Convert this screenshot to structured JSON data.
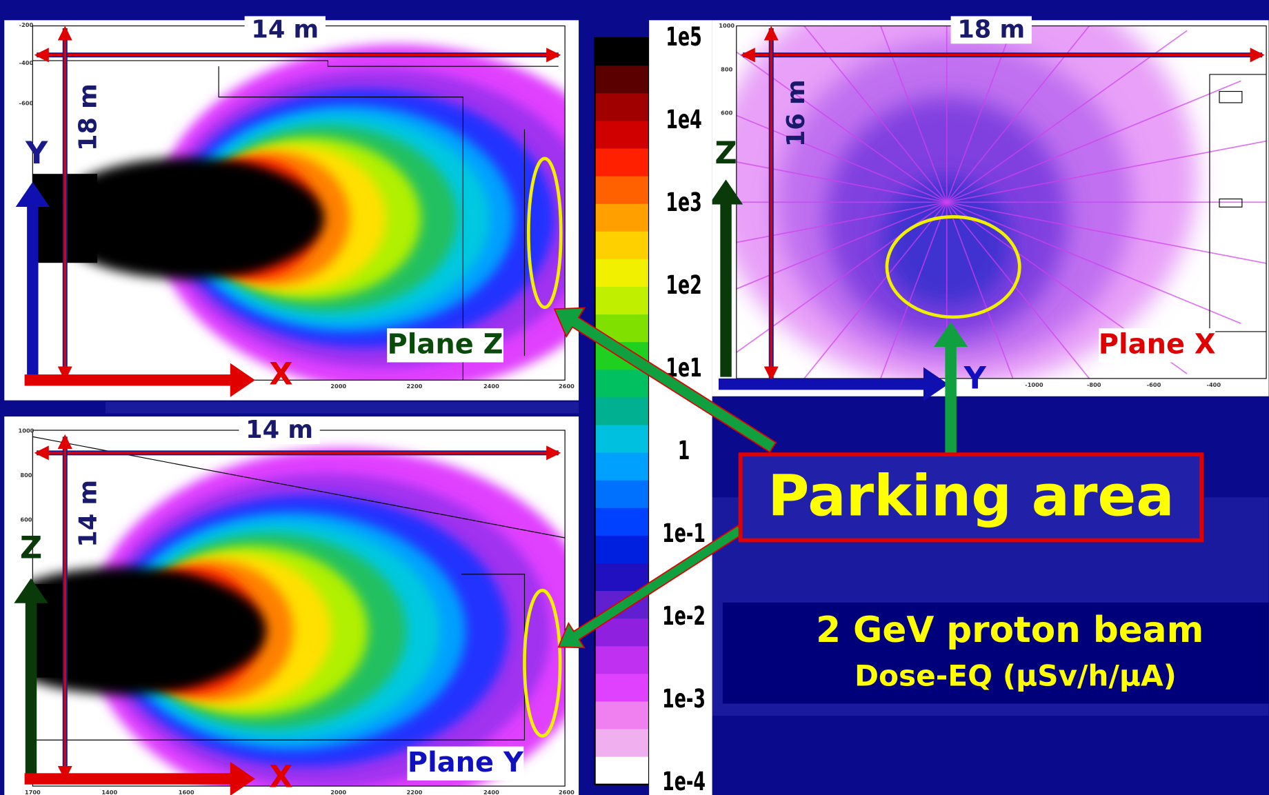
{
  "panels": [
    {
      "title": "Plane Z",
      "width_label": "14 m",
      "height_label": "18 m",
      "axis_h": "X",
      "axis_v": "Y",
      "x_ticks": [
        "2000",
        "2200",
        "2400",
        "2600"
      ],
      "y_ticks": [
        "-200",
        "-400",
        "-600"
      ]
    },
    {
      "title": "Plane Y",
      "width_label": "14 m",
      "height_label": "14 m",
      "axis_h": "X",
      "axis_v": "Z",
      "x_ticks": [
        "1700",
        "1400",
        "1600",
        "2000",
        "2200",
        "2400",
        "2600"
      ],
      "y_ticks": [
        "1000",
        "800",
        "600"
      ]
    },
    {
      "title": "Plane X",
      "width_label": "18 m",
      "height_label": "16 m",
      "axis_h": "Y",
      "axis_v": "Z",
      "x_ticks": [
        "-1000",
        "-800",
        "-600",
        "-400"
      ],
      "y_ticks": [
        "1000",
        "800",
        "600"
      ]
    }
  ],
  "colorbar": {
    "labels": [
      "1e5",
      "1e4",
      "1e3",
      "1e2",
      "1e1",
      "1",
      "1e-1",
      "1e-2",
      "1e-3",
      "1e-4"
    ],
    "colors": [
      "#000000",
      "#5a0000",
      "#a00000",
      "#d00000",
      "#ff2000",
      "#ff6000",
      "#ffa000",
      "#ffd000",
      "#f0f000",
      "#c0f000",
      "#80e000",
      "#20d020",
      "#00c060",
      "#00b090",
      "#00c0e0",
      "#00a0ff",
      "#0070ff",
      "#0040ff",
      "#0020e0",
      "#2010c0",
      "#6020d0",
      "#9020e0",
      "#c030f0",
      "#e040ff",
      "#f080f0",
      "#f0b0f0",
      "#ffffff"
    ]
  },
  "callout": "Parking area",
  "beam_info": {
    "line1": "2 GeV proton beam",
    "line2": "Dose-EQ (µSv/h/µA)"
  }
}
